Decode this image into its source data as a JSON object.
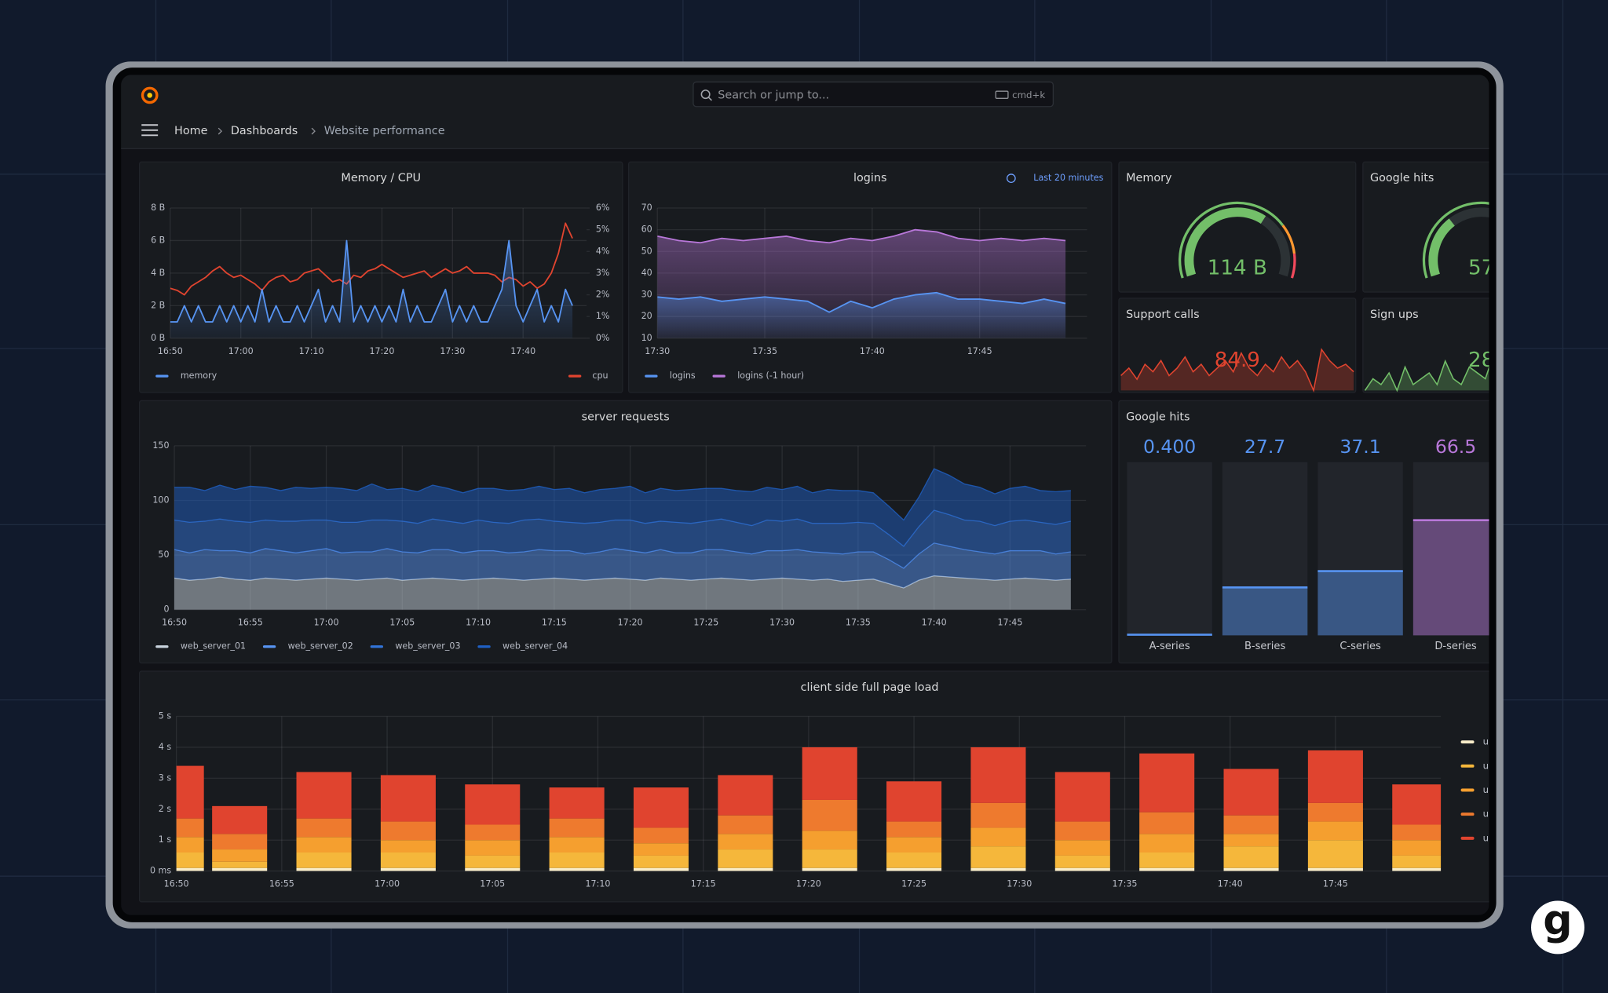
{
  "header": {
    "search": "Search or jump to...",
    "shortcut": "cmd+k",
    "breadcrumbs": [
      "Home",
      "Dashboards",
      "Website performance"
    ]
  },
  "brand": "g",
  "chart_data": [
    {
      "type": "line",
      "title": "Memory / CPU",
      "grid": true,
      "x": [
        "16:50",
        "16:51",
        "16:52",
        "16:53",
        "16:54",
        "16:55",
        "16:56",
        "16:57",
        "16:58",
        "16:59",
        "17:00",
        "17:01",
        "17:02",
        "17:03",
        "17:04",
        "17:05",
        "17:06",
        "17:07",
        "17:08",
        "17:09",
        "17:10",
        "17:11",
        "17:12",
        "17:13",
        "17:14",
        "17:15",
        "17:16",
        "17:17",
        "17:18",
        "17:19",
        "17:20",
        "17:21",
        "17:22",
        "17:23",
        "17:24",
        "17:25",
        "17:26",
        "17:27",
        "17:28",
        "17:29",
        "17:30",
        "17:31",
        "17:32",
        "17:33",
        "17:34",
        "17:35",
        "17:36",
        "17:37",
        "17:38",
        "17:39",
        "17:40",
        "17:41",
        "17:42",
        "17:43",
        "17:44",
        "17:45",
        "17:46",
        "17:47"
      ],
      "xlim": [
        "16:50",
        "17:49"
      ],
      "xticks": [
        "16:50",
        "17:00",
        "17:10",
        "17:20",
        "17:30",
        "17:40"
      ],
      "ylim": [
        0,
        8
      ],
      "yticks": [
        {
          "value": 0,
          "label": "0 B"
        },
        {
          "value": 2,
          "label": "2 B"
        },
        {
          "value": 4,
          "label": "4 B"
        },
        {
          "value": 6,
          "label": "6 B"
        },
        {
          "value": 8,
          "label": "8 B"
        }
      ],
      "y2lim": [
        0,
        6
      ],
      "y2ticks": [
        {
          "value": 0,
          "label": "0%"
        },
        {
          "value": 1,
          "label": "1%"
        },
        {
          "value": 2,
          "label": "2%"
        },
        {
          "value": 3,
          "label": "3%"
        },
        {
          "value": 4,
          "label": "4%"
        },
        {
          "value": 5,
          "label": "5%"
        },
        {
          "value": 6,
          "label": "6%"
        }
      ],
      "series": [
        {
          "name": "memory",
          "color": "#5794f2",
          "fill": true,
          "values": [
            1,
            1,
            2,
            1,
            2,
            1,
            1,
            2,
            1,
            2,
            1,
            2,
            1,
            3,
            1,
            2,
            1,
            1,
            2,
            1,
            2,
            3,
            1,
            2,
            1,
            6,
            1,
            2,
            1,
            2,
            1,
            2,
            1,
            3,
            1,
            2,
            1,
            1,
            2,
            3,
            1,
            2,
            1,
            2,
            1,
            1,
            2,
            3,
            6,
            2,
            1,
            2,
            3,
            1,
            2,
            1,
            3,
            2
          ]
        },
        {
          "name": "cpu",
          "color": "#e0442f",
          "axis": "y2",
          "values": [
            2.3,
            2.2,
            2.0,
            2.4,
            2.6,
            2.8,
            3.1,
            3.3,
            3.0,
            2.8,
            2.9,
            2.7,
            2.5,
            2.2,
            2.6,
            2.8,
            2.9,
            2.6,
            2.7,
            3.0,
            3.1,
            3.2,
            2.9,
            2.6,
            2.7,
            2.5,
            2.9,
            2.8,
            3.1,
            3.2,
            3.4,
            3.2,
            3.0,
            2.8,
            2.9,
            3.0,
            3.1,
            2.8,
            3.0,
            3.2,
            3.0,
            3.1,
            3.3,
            3.0,
            3.0,
            3.0,
            2.9,
            2.6,
            2.8,
            2.7,
            2.4,
            2.6,
            2.3,
            2.5,
            3.0,
            3.9,
            5.3,
            4.6
          ]
        }
      ]
    },
    {
      "type": "line",
      "title": "logins",
      "time_range": "Last 20 minutes",
      "grid": true,
      "x": [
        "17:30",
        "17:31",
        "17:32",
        "17:33",
        "17:34",
        "17:35",
        "17:36",
        "17:37",
        "17:38",
        "17:39",
        "17:40",
        "17:41",
        "17:42",
        "17:43",
        "17:44",
        "17:45",
        "17:46",
        "17:47",
        "17:48",
        "17:49"
      ],
      "xlim": [
        "17:30",
        "17:50"
      ],
      "xticks": [
        "17:30",
        "17:35",
        "17:40",
        "17:45"
      ],
      "ylim": [
        10,
        70
      ],
      "yticks": [
        10,
        20,
        30,
        40,
        50,
        60,
        70
      ],
      "series": [
        {
          "name": "logins",
          "color": "#5794f2",
          "fill": true,
          "values": [
            29,
            28,
            29,
            27,
            28,
            29,
            28,
            27,
            22,
            27,
            24,
            28,
            30,
            31,
            28,
            28,
            27,
            26,
            28,
            26
          ]
        },
        {
          "name": "logins (-1 hour)",
          "color": "#b877d9",
          "fill": true,
          "values": [
            57,
            55,
            54,
            56,
            55,
            56,
            57,
            55,
            54,
            56,
            55,
            57,
            60,
            59,
            56,
            55,
            56,
            55,
            56,
            55
          ]
        }
      ]
    },
    {
      "type": "gauge",
      "title": "Memory",
      "value": 114,
      "value_label": "114 B",
      "range": [
        0,
        175
      ],
      "thresholds": [
        {
          "value": 0,
          "color": "#73bf69"
        },
        {
          "value": 130,
          "color": "#ff9830"
        },
        {
          "value": 155,
          "color": "#f2495c"
        }
      ]
    },
    {
      "type": "gauge",
      "title": "Google hits",
      "value": 57,
      "range": [
        0,
        175
      ],
      "thresholds": [
        {
          "value": 0,
          "color": "#73bf69"
        },
        {
          "value": 130,
          "color": "#ff9830"
        },
        {
          "value": 155,
          "color": "#f2495c"
        }
      ]
    },
    {
      "type": "stat",
      "title": "Support calls",
      "value": 84.9,
      "color": "#e0442f",
      "sparkline": [
        82,
        84,
        81,
        85,
        83,
        86,
        82,
        84,
        87,
        83,
        85,
        82,
        84,
        86,
        83,
        88,
        84,
        82,
        85,
        83,
        87,
        84,
        86,
        83,
        78,
        89,
        86,
        84,
        85,
        83
      ]
    },
    {
      "type": "stat",
      "title": "Sign ups",
      "value": 28,
      "color": "#73bf69",
      "sparkline": [
        24,
        26,
        25,
        27,
        24,
        28,
        25,
        26,
        27,
        25,
        29,
        26,
        25,
        28,
        27,
        26,
        30,
        27,
        26,
        29,
        28,
        27,
        30,
        28,
        29,
        31,
        28,
        30,
        29,
        28
      ]
    },
    {
      "type": "area",
      "stacked": true,
      "title": "server requests",
      "grid": true,
      "x": [
        "16:50",
        "16:51",
        "16:52",
        "16:53",
        "16:54",
        "16:55",
        "16:56",
        "16:57",
        "16:58",
        "16:59",
        "17:00",
        "17:01",
        "17:02",
        "17:03",
        "17:04",
        "17:05",
        "17:06",
        "17:07",
        "17:08",
        "17:09",
        "17:10",
        "17:11",
        "17:12",
        "17:13",
        "17:14",
        "17:15",
        "17:16",
        "17:17",
        "17:18",
        "17:19",
        "17:20",
        "17:21",
        "17:22",
        "17:23",
        "17:24",
        "17:25",
        "17:26",
        "17:27",
        "17:28",
        "17:29",
        "17:30",
        "17:31",
        "17:32",
        "17:33",
        "17:34",
        "17:35",
        "17:36",
        "17:37",
        "17:38",
        "17:39",
        "17:40",
        "17:41",
        "17:42",
        "17:43",
        "17:44",
        "17:45",
        "17:46",
        "17:47",
        "17:48",
        "17:49"
      ],
      "xlim": [
        "16:50",
        "17:50"
      ],
      "xticks": [
        "16:50",
        "16:55",
        "17:00",
        "17:05",
        "17:10",
        "17:15",
        "17:20",
        "17:25",
        "17:30",
        "17:35",
        "17:40",
        "17:45"
      ],
      "ylim": [
        0,
        150
      ],
      "yticks": [
        0,
        50,
        100,
        150
      ],
      "series": [
        {
          "name": "web_server_01",
          "color": "#c8d3dd",
          "values": [
            29,
            27,
            28,
            30,
            28,
            27,
            29,
            28,
            27,
            28,
            29,
            28,
            27,
            28,
            29,
            27,
            28,
            29,
            28,
            27,
            28,
            29,
            28,
            27,
            28,
            29,
            28,
            27,
            28,
            29,
            28,
            27,
            29,
            28,
            27,
            28,
            29,
            28,
            27,
            28,
            29,
            28,
            27,
            28,
            26,
            27,
            28,
            24,
            20,
            27,
            31,
            30,
            29,
            28,
            27,
            28,
            29,
            28,
            27,
            28
          ]
        },
        {
          "name": "web_server_02",
          "color": "#5794f2",
          "values": [
            26,
            25,
            27,
            24,
            26,
            25,
            27,
            26,
            25,
            26,
            27,
            24,
            26,
            25,
            27,
            26,
            24,
            26,
            27,
            25,
            26,
            25,
            24,
            26,
            27,
            25,
            26,
            24,
            25,
            27,
            26,
            25,
            26,
            24,
            25,
            27,
            26,
            25,
            24,
            26,
            25,
            27,
            26,
            24,
            25,
            26,
            25,
            22,
            18,
            24,
            30,
            28,
            26,
            25,
            24,
            26,
            25,
            26,
            24,
            25
          ]
        },
        {
          "name": "web_server_03",
          "color": "#3274d9",
          "values": [
            27,
            28,
            26,
            29,
            27,
            28,
            26,
            27,
            29,
            28,
            26,
            28,
            27,
            29,
            26,
            28,
            27,
            28,
            26,
            27,
            28,
            26,
            27,
            29,
            28,
            27,
            26,
            28,
            27,
            26,
            28,
            27,
            26,
            28,
            27,
            26,
            28,
            27,
            26,
            28,
            27,
            28,
            26,
            27,
            28,
            27,
            26,
            23,
            20,
            25,
            30,
            29,
            27,
            28,
            26,
            27,
            28,
            26,
            27,
            28
          ]
        },
        {
          "name": "web_server_04",
          "color": "#1f60c4",
          "values": [
            30,
            32,
            28,
            31,
            29,
            33,
            30,
            28,
            31,
            29,
            30,
            31,
            29,
            33,
            28,
            30,
            29,
            31,
            30,
            28,
            29,
            31,
            30,
            28,
            30,
            29,
            31,
            28,
            30,
            29,
            31,
            28,
            30,
            29,
            31,
            30,
            28,
            29,
            31,
            30,
            29,
            30,
            28,
            31,
            30,
            29,
            28,
            26,
            24,
            27,
            38,
            36,
            33,
            31,
            29,
            30,
            31,
            29,
            30,
            28
          ]
        }
      ]
    },
    {
      "type": "bargauge",
      "title": "Google hits",
      "categories": [
        "A-series",
        "B-series",
        "C-series",
        "D-series"
      ],
      "values": [
        0.4,
        27.7,
        37.1,
        66.5
      ],
      "value_labels": [
        "0.400",
        "27.7",
        "37.1",
        "66.5"
      ],
      "colors": [
        "#5794f2",
        "#5794f2",
        "#5794f2",
        "#b877d9"
      ],
      "ylim": [
        0,
        100
      ]
    },
    {
      "type": "bar",
      "stacked": true,
      "title": "client side full page load",
      "grid": true,
      "x": [
        "16:50",
        "16:53",
        "16:57",
        "17:01",
        "17:05",
        "17:09",
        "17:13",
        "17:17",
        "17:21",
        "17:25",
        "17:29",
        "17:33",
        "17:37",
        "17:41",
        "17:45",
        "17:49"
      ],
      "xlim": [
        "16:50",
        "17:50"
      ],
      "xticks": [
        "16:50",
        "16:55",
        "17:00",
        "17:05",
        "17:10",
        "17:15",
        "17:20",
        "17:25",
        "17:30",
        "17:35",
        "17:40",
        "17:45"
      ],
      "ylim": [
        0,
        5
      ],
      "yticks": [
        {
          "value": 0,
          "label": "0 ms"
        },
        {
          "value": 1,
          "label": "1 s"
        },
        {
          "value": 2,
          "label": "2 s"
        },
        {
          "value": 3,
          "label": "3 s"
        },
        {
          "value": 4,
          "label": "4 s"
        },
        {
          "value": 5,
          "label": "5 s"
        }
      ],
      "series": [
        {
          "name": "u",
          "color": "#f8ecc8",
          "values": [
            0.1,
            0.1,
            0.1,
            0.1,
            0.1,
            0.1,
            0.1,
            0.1,
            0.1,
            0.1,
            0.1,
            0.1,
            0.1,
            0.1,
            0.1,
            0.1
          ]
        },
        {
          "name": "u",
          "color": "#f5b73b",
          "values": [
            0.5,
            0.2,
            0.5,
            0.5,
            0.4,
            0.5,
            0.4,
            0.6,
            0.6,
            0.5,
            0.7,
            0.4,
            0.5,
            0.7,
            0.9,
            0.4
          ]
        },
        {
          "name": "u",
          "color": "#f59f2f",
          "values": [
            0.5,
            0.4,
            0.5,
            0.4,
            0.5,
            0.5,
            0.4,
            0.5,
            0.6,
            0.5,
            0.6,
            0.5,
            0.6,
            0.4,
            0.6,
            0.5
          ]
        },
        {
          "name": "u",
          "color": "#ee7a2e",
          "values": [
            0.6,
            0.5,
            0.6,
            0.6,
            0.5,
            0.6,
            0.5,
            0.6,
            1.0,
            0.5,
            0.8,
            0.6,
            0.7,
            0.6,
            0.6,
            0.5
          ]
        },
        {
          "name": "u",
          "color": "#e0442f",
          "values": [
            1.7,
            0.9,
            1.5,
            1.5,
            1.3,
            1.0,
            1.3,
            1.3,
            1.7,
            1.3,
            1.8,
            1.6,
            1.9,
            1.5,
            1.7,
            1.3
          ]
        }
      ]
    }
  ]
}
